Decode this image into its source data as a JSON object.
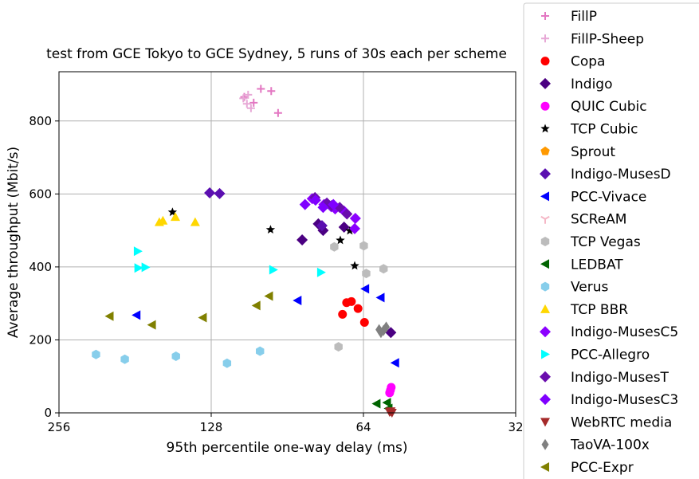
{
  "chart_data": {
    "type": "scatter",
    "title": "test from GCE Tokyo to GCE Sydney, 5 runs of 30s each per scheme",
    "xlabel": "95th percentile one-way delay (ms)",
    "ylabel": "Average throughput (Mbit/s)",
    "x_scale": "log2",
    "x_inverted": true,
    "xlim": [
      256,
      32
    ],
    "ylim": [
      0,
      935
    ],
    "x_ticks": [
      {
        "value": 256,
        "label": "256"
      },
      {
        "value": 128,
        "label": "128"
      },
      {
        "value": 64,
        "label": "64"
      },
      {
        "value": 32,
        "label": "32"
      }
    ],
    "y_ticks": [
      {
        "value": 0,
        "label": "0"
      },
      {
        "value": 200,
        "label": "200"
      },
      {
        "value": 400,
        "label": "400"
      },
      {
        "value": 600,
        "label": "600"
      },
      {
        "value": 800,
        "label": "800"
      }
    ],
    "grid": true,
    "legend_position": "right, outside plot",
    "series": [
      {
        "name": "FillP",
        "marker": "plus",
        "color": "#e377c2",
        "points": [
          [
            110.1,
            866
          ],
          [
            102.1,
            888
          ],
          [
            97.4,
            882
          ],
          [
            105.5,
            850
          ],
          [
            94.4,
            822
          ]
        ]
      },
      {
        "name": "FillP-Sheep",
        "marker": "plus",
        "color": "#e7a8d6",
        "points": [
          [
            110.6,
            862
          ],
          [
            108.2,
            872
          ],
          [
            106.8,
            835
          ],
          [
            108.8,
            847
          ]
        ]
      },
      {
        "name": "Copa",
        "marker": "circle",
        "color": "#ff0000",
        "points": [
          [
            70.4,
            270
          ],
          [
            69.1,
            302
          ],
          [
            67.6,
            305
          ],
          [
            65.6,
            286
          ],
          [
            63.7,
            248
          ]
        ]
      },
      {
        "name": "Indigo",
        "marker": "diamond",
        "color": "#4b0082",
        "points": [
          [
            84.6,
            474
          ],
          [
            78.6,
            518
          ],
          [
            76.9,
            500
          ],
          [
            69.9,
            509
          ],
          [
            56.5,
            220
          ]
        ]
      },
      {
        "name": "QUIC Cubic",
        "marker": "circle",
        "color": "#ff00ff",
        "points": [
          [
            56.6,
            62
          ],
          [
            56.4,
            70
          ],
          [
            56.8,
            55
          ]
        ]
      },
      {
        "name": "TCP Cubic",
        "marker": "star",
        "color": "#000000",
        "points": [
          [
            152.7,
            550
          ],
          [
            97.7,
            502
          ],
          [
            71.1,
            473
          ],
          [
            68.1,
            499
          ],
          [
            66.6,
            403
          ]
        ]
      },
      {
        "name": "Sprout",
        "marker": "pentagon",
        "color": "#ff9900",
        "points": []
      },
      {
        "name": "Indigo-MusesD",
        "marker": "diamond",
        "color": "#5b0fb0",
        "points": [
          [
            128.9,
            603
          ],
          [
            123.2,
            601
          ],
          [
            77.3,
            513
          ]
        ]
      },
      {
        "name": "PCC-Vivace",
        "marker": "triangle-left",
        "color": "#0000ff",
        "points": [
          [
            179.9,
            268
          ],
          [
            86.4,
            308
          ],
          [
            63.5,
            340
          ],
          [
            59.2,
            316
          ],
          [
            55.4,
            137
          ]
        ]
      },
      {
        "name": "SCReAM",
        "marker": "tri-down",
        "color": "#f5b7c6",
        "points": []
      },
      {
        "name": "TCP Vegas",
        "marker": "hexagon",
        "color": "#bcbcbc",
        "points": [
          [
            73.1,
            455
          ],
          [
            63.9,
            458
          ],
          [
            63.2,
            382
          ],
          [
            58.4,
            395
          ],
          [
            71.7,
            181
          ]
        ]
      },
      {
        "name": "LEDBAT",
        "marker": "triangle-left",
        "color": "#006400",
        "points": [
          [
            60.3,
            25
          ],
          [
            57.5,
            28
          ],
          [
            57.1,
            12
          ]
        ]
      },
      {
        "name": "Verus",
        "marker": "hexagon",
        "color": "#87ceeb",
        "points": [
          [
            216.3,
            160
          ],
          [
            189.7,
            147
          ],
          [
            150.3,
            155
          ],
          [
            119.1,
            136
          ],
          [
            102.5,
            169
          ]
        ]
      },
      {
        "name": "TCP BBR",
        "marker": "triangle-up",
        "color": "#ffd700",
        "points": [
          [
            162.1,
            523
          ],
          [
            159.5,
            527
          ],
          [
            150.7,
            537
          ],
          [
            137.7,
            523
          ]
        ]
      },
      {
        "name": "Indigo-MusesC5",
        "marker": "diamond",
        "color": "#8b00ff",
        "points": [
          [
            80.8,
            587
          ],
          [
            76.6,
            571
          ],
          [
            74.1,
            565
          ],
          [
            72.8,
            559
          ],
          [
            69.9,
            553
          ],
          [
            66.4,
            533
          ],
          [
            66.6,
            505
          ]
        ]
      },
      {
        "name": "PCC-Allegro",
        "marker": "triangle-right",
        "color": "#00ffff",
        "points": [
          [
            178.8,
            443
          ],
          [
            178.3,
            397
          ],
          [
            172.6,
            399
          ],
          [
            96.5,
            392
          ],
          [
            77.6,
            385
          ]
        ]
      },
      {
        "name": "Indigo-MusesT",
        "marker": "diamond",
        "color": "#6a0dad",
        "points": [
          [
            79.8,
            590
          ],
          [
            75.6,
            575
          ],
          [
            74.0,
            568
          ],
          [
            71.3,
            563
          ],
          [
            69.0,
            545
          ]
        ]
      },
      {
        "name": "Indigo-MusesC3",
        "marker": "diamond",
        "color": "#7f00ff",
        "points": [
          [
            83.5,
            571
          ],
          [
            79.6,
            583
          ],
          [
            76.9,
            563
          ],
          [
            73.4,
            571
          ]
        ]
      },
      {
        "name": "WebRTC media",
        "marker": "triangle-down",
        "color": "#a52a2a",
        "points": [
          [
            56.8,
            2
          ],
          [
            56.5,
            4
          ],
          [
            56.2,
            0
          ]
        ]
      },
      {
        "name": "TaoVA-100x",
        "marker": "thin-diamond",
        "color": "#808080",
        "points": [
          [
            59.6,
            228
          ],
          [
            57.7,
            235
          ],
          [
            59.1,
            220
          ],
          [
            58.4,
            226
          ]
        ]
      },
      {
        "name": "PCC-Expr",
        "marker": "triangle-left",
        "color": "#808000",
        "points": [
          [
            203.3,
            265
          ],
          [
            167.7,
            241
          ],
          [
            133.0,
            261
          ],
          [
            104.2,
            294
          ],
          [
            98.4,
            320
          ]
        ]
      }
    ]
  }
}
